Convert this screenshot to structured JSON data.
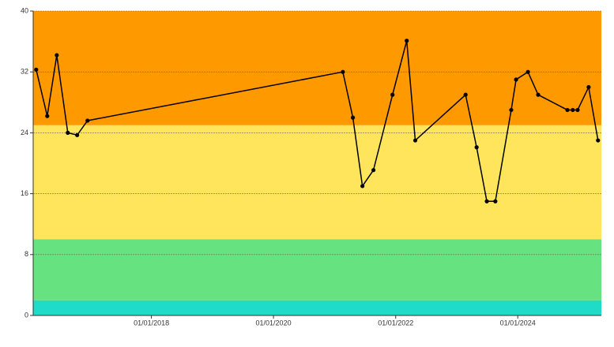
{
  "chart_data": {
    "type": "line",
    "x": [
      "2016-02-12",
      "2016-04-18",
      "2016-06-14",
      "2016-08-19",
      "2016-10-14",
      "2016-12-15",
      "2021-02-19",
      "2021-04-20",
      "2021-06-16",
      "2021-08-21",
      "2021-12-13",
      "2022-03-08",
      "2022-04-28",
      "2023-02-23",
      "2023-04-30",
      "2023-06-30",
      "2023-08-20",
      "2023-11-23",
      "2023-12-22",
      "2024-03-02",
      "2024-05-02",
      "2024-10-24",
      "2024-11-25",
      "2024-12-24",
      "2025-02-28",
      "2025-04-25"
    ],
    "series": [
      {
        "color": "#000000",
        "values": [
          32.3,
          26.2,
          34.2,
          24.0,
          23.7,
          25.6,
          32.0,
          26.0,
          17.0,
          19.1,
          29.0,
          36.1,
          23.0,
          29.0,
          22.1,
          15.0,
          15.0,
          27.0,
          31.0,
          32.0,
          29.0,
          27.0,
          27.0,
          27.0,
          30.0,
          23.0
        ]
      }
    ],
    "xlim": [
      "2016-01-25",
      "2025-05-15"
    ],
    "xticks": [
      {
        "value": "2018-01-01",
        "label": "01/01/2018"
      },
      {
        "value": "2020-01-01",
        "label": "01/01/2020"
      },
      {
        "value": "2022-01-01",
        "label": "01/01/2022"
      },
      {
        "value": "2024-01-01",
        "label": "01/01/2024"
      }
    ],
    "ylim": [
      0,
      40
    ],
    "yticks": [
      0,
      8,
      16,
      24,
      32,
      40
    ],
    "grid": true,
    "bands": [
      {
        "from": 0,
        "to": 2,
        "color": "#1edcc8"
      },
      {
        "from": 2,
        "to": 10,
        "color": "#66e380"
      },
      {
        "from": 10,
        "to": 25,
        "color": "#ffe55c"
      },
      {
        "from": 25,
        "to": 40,
        "color": "#ff9900"
      }
    ]
  }
}
